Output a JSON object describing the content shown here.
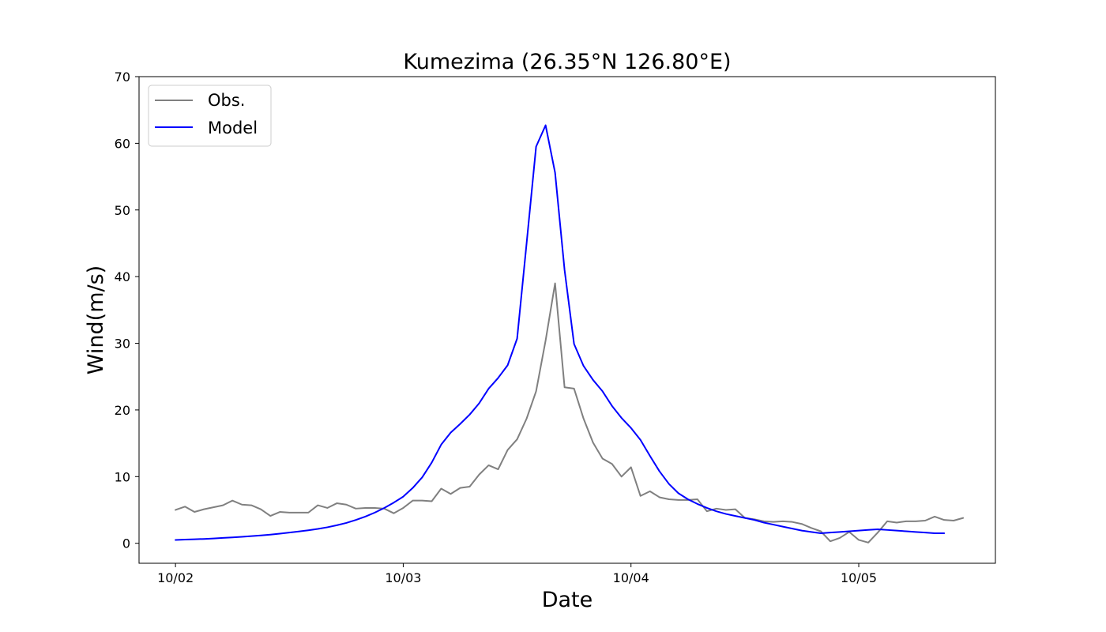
{
  "chart_data": {
    "type": "line",
    "title": "Kumezima (26.35°N 126.80°E)",
    "xlabel": "Date",
    "ylabel": "Wind(m/s)",
    "x_ticks": [
      {
        "label": "10/02",
        "day": 0
      },
      {
        "label": "10/03",
        "day": 1
      },
      {
        "label": "10/04",
        "day": 2
      },
      {
        "label": "10/05",
        "day": 3
      }
    ],
    "xlim_days": [
      -0.16,
      3.6
    ],
    "ylim": [
      -3,
      70
    ],
    "y_ticks": [
      0,
      10,
      20,
      30,
      40,
      50,
      60,
      70
    ],
    "grid": false,
    "legend_position": "top-left",
    "series": [
      {
        "name": "Obs.",
        "color": "#808080",
        "step_days": 0.041667,
        "values": [
          5.0,
          5.5,
          4.7,
          5.1,
          5.4,
          5.7,
          6.4,
          5.8,
          5.7,
          5.1,
          4.1,
          4.7,
          4.6,
          4.6,
          4.6,
          5.7,
          5.3,
          6.0,
          5.8,
          5.2,
          5.3,
          5.3,
          5.2,
          4.5,
          5.3,
          6.4,
          6.4,
          6.3,
          8.2,
          7.4,
          8.3,
          8.5,
          10.3,
          11.7,
          11.1,
          14.0,
          15.6,
          18.7,
          22.8,
          30.4,
          39.0,
          23.4,
          23.2,
          18.7,
          15.1,
          12.7,
          11.9,
          10.0,
          11.4,
          7.1,
          7.8,
          6.9,
          6.6,
          6.5,
          6.5,
          6.6,
          4.8,
          5.2,
          5.0,
          5.1,
          3.8,
          3.6,
          3.3,
          3.2,
          3.3,
          3.2,
          2.9,
          2.3,
          1.8,
          0.3,
          0.8,
          1.7,
          0.5,
          0.1,
          1.6,
          3.3,
          3.1,
          3.3,
          3.3,
          3.4,
          4.0,
          3.5,
          3.4,
          3.8
        ]
      },
      {
        "name": "Model",
        "color": "#0000ff",
        "step_days": 0.041667,
        "values": [
          0.5,
          0.55,
          0.6,
          0.65,
          0.72,
          0.8,
          0.88,
          0.97,
          1.07,
          1.18,
          1.3,
          1.45,
          1.6,
          1.77,
          1.95,
          2.15,
          2.4,
          2.7,
          3.05,
          3.5,
          4.0,
          4.6,
          5.3,
          6.1,
          7.0,
          8.3,
          9.9,
          12.1,
          14.8,
          16.6,
          17.9,
          19.3,
          21.0,
          23.2,
          24.8,
          26.7,
          30.7,
          45.0,
          59.5,
          62.7,
          55.6,
          41.0,
          29.9,
          26.6,
          24.5,
          22.8,
          20.6,
          18.8,
          17.3,
          15.5,
          13.1,
          10.8,
          8.9,
          7.5,
          6.6,
          5.9,
          5.3,
          4.8,
          4.4,
          4.1,
          3.8,
          3.5,
          3.1,
          2.8,
          2.5,
          2.2,
          1.9,
          1.7,
          1.5,
          1.6,
          1.7,
          1.8,
          1.9,
          2.0,
          2.1,
          2.0,
          1.9,
          1.8,
          1.7,
          1.6,
          1.5,
          1.5
        ]
      }
    ]
  }
}
